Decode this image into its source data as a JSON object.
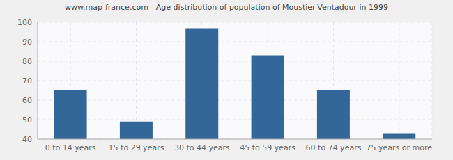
{
  "chart_data": {
    "type": "bar",
    "title": "www.map-france.com - Age distribution of population of Moustier-Ventadour in 1999",
    "categories": [
      "0 to 14 years",
      "15 to 29 years",
      "30 to 44 years",
      "45 to 59 years",
      "60 to 74 years",
      "75 years or more"
    ],
    "values": [
      65,
      49,
      97,
      83,
      65,
      43
    ],
    "color": "#336699",
    "ylim": [
      40,
      100
    ],
    "yticks": [
      40,
      50,
      60,
      70,
      80,
      90,
      100
    ],
    "grid": true
  }
}
